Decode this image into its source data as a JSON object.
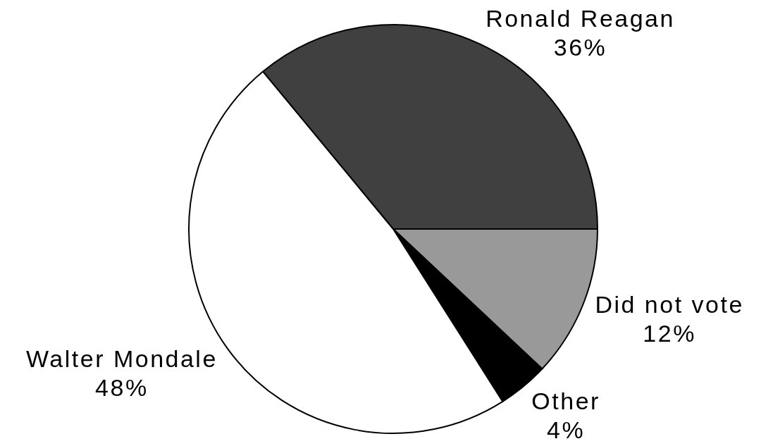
{
  "chart_data": {
    "type": "pie",
    "categories": [
      "Ronald Reagan",
      "Did not vote",
      "Other",
      "Walter Mondale"
    ],
    "values": [
      36,
      12,
      4,
      48
    ],
    "colors": [
      "#404040",
      "#999999",
      "#000000",
      "#ffffff"
    ],
    "value_labels": [
      "36%",
      "12%",
      "4%",
      "48%"
    ]
  }
}
